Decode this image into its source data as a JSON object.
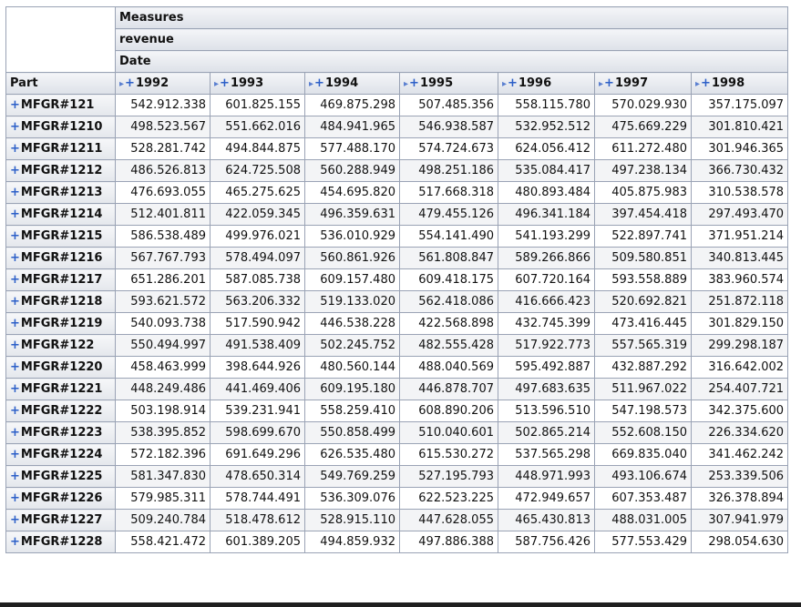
{
  "pivot": {
    "measures_label": "Measures",
    "measure_name": "revenue",
    "dimension_label": "Date",
    "row_header_label": "Part",
    "years": [
      "1992",
      "1993",
      "1994",
      "1995",
      "1996",
      "1997",
      "1998"
    ],
    "rows": [
      {
        "part": "MFGR#121",
        "values": [
          "542.912.338",
          "601.825.155",
          "469.875.298",
          "507.485.356",
          "558.115.780",
          "570.029.930",
          "357.175.097"
        ]
      },
      {
        "part": "MFGR#1210",
        "values": [
          "498.523.567",
          "551.662.016",
          "484.941.965",
          "546.938.587",
          "532.952.512",
          "475.669.229",
          "301.810.421"
        ]
      },
      {
        "part": "MFGR#1211",
        "values": [
          "528.281.742",
          "494.844.875",
          "577.488.170",
          "574.724.673",
          "624.056.412",
          "611.272.480",
          "301.946.365"
        ]
      },
      {
        "part": "MFGR#1212",
        "values": [
          "486.526.813",
          "624.725.508",
          "560.288.949",
          "498.251.186",
          "535.084.417",
          "497.238.134",
          "366.730.432"
        ]
      },
      {
        "part": "MFGR#1213",
        "values": [
          "476.693.055",
          "465.275.625",
          "454.695.820",
          "517.668.318",
          "480.893.484",
          "405.875.983",
          "310.538.578"
        ]
      },
      {
        "part": "MFGR#1214",
        "values": [
          "512.401.811",
          "422.059.345",
          "496.359.631",
          "479.455.126",
          "496.341.184",
          "397.454.418",
          "297.493.470"
        ]
      },
      {
        "part": "MFGR#1215",
        "values": [
          "586.538.489",
          "499.976.021",
          "536.010.929",
          "554.141.490",
          "541.193.299",
          "522.897.741",
          "371.951.214"
        ]
      },
      {
        "part": "MFGR#1216",
        "values": [
          "567.767.793",
          "578.494.097",
          "560.861.926",
          "561.808.847",
          "589.266.866",
          "509.580.851",
          "340.813.445"
        ]
      },
      {
        "part": "MFGR#1217",
        "values": [
          "651.286.201",
          "587.085.738",
          "609.157.480",
          "609.418.175",
          "607.720.164",
          "593.558.889",
          "383.960.574"
        ]
      },
      {
        "part": "MFGR#1218",
        "values": [
          "593.621.572",
          "563.206.332",
          "519.133.020",
          "562.418.086",
          "416.666.423",
          "520.692.821",
          "251.872.118"
        ]
      },
      {
        "part": "MFGR#1219",
        "values": [
          "540.093.738",
          "517.590.942",
          "446.538.228",
          "422.568.898",
          "432.745.399",
          "473.416.445",
          "301.829.150"
        ]
      },
      {
        "part": "MFGR#122",
        "values": [
          "550.494.997",
          "491.538.409",
          "502.245.752",
          "482.555.428",
          "517.922.773",
          "557.565.319",
          "299.298.187"
        ]
      },
      {
        "part": "MFGR#1220",
        "values": [
          "458.463.999",
          "398.644.926",
          "480.560.144",
          "488.040.569",
          "595.492.887",
          "432.887.292",
          "316.642.002"
        ]
      },
      {
        "part": "MFGR#1221",
        "values": [
          "448.249.486",
          "441.469.406",
          "609.195.180",
          "446.878.707",
          "497.683.635",
          "511.967.022",
          "254.407.721"
        ]
      },
      {
        "part": "MFGR#1222",
        "values": [
          "503.198.914",
          "539.231.941",
          "558.259.410",
          "608.890.206",
          "513.596.510",
          "547.198.573",
          "342.375.600"
        ]
      },
      {
        "part": "MFGR#1223",
        "values": [
          "538.395.852",
          "598.699.670",
          "550.858.499",
          "510.040.601",
          "502.865.214",
          "552.608.150",
          "226.334.620"
        ]
      },
      {
        "part": "MFGR#1224",
        "values": [
          "572.182.396",
          "691.649.296",
          "626.535.480",
          "615.530.272",
          "537.565.298",
          "669.835.040",
          "341.462.242"
        ]
      },
      {
        "part": "MFGR#1225",
        "values": [
          "581.347.830",
          "478.650.314",
          "549.769.259",
          "527.195.793",
          "448.971.993",
          "493.106.674",
          "253.339.506"
        ]
      },
      {
        "part": "MFGR#1226",
        "values": [
          "579.985.311",
          "578.744.491",
          "536.309.076",
          "622.523.225",
          "472.949.657",
          "607.353.487",
          "326.378.894"
        ]
      },
      {
        "part": "MFGR#1227",
        "values": [
          "509.240.784",
          "518.478.612",
          "528.915.110",
          "447.628.055",
          "465.430.813",
          "488.031.005",
          "307.941.979"
        ]
      },
      {
        "part": "MFGR#1228",
        "values": [
          "558.421.472",
          "601.389.205",
          "494.859.932",
          "497.886.388",
          "587.756.426",
          "577.553.429",
          "298.054.630"
        ]
      }
    ]
  }
}
